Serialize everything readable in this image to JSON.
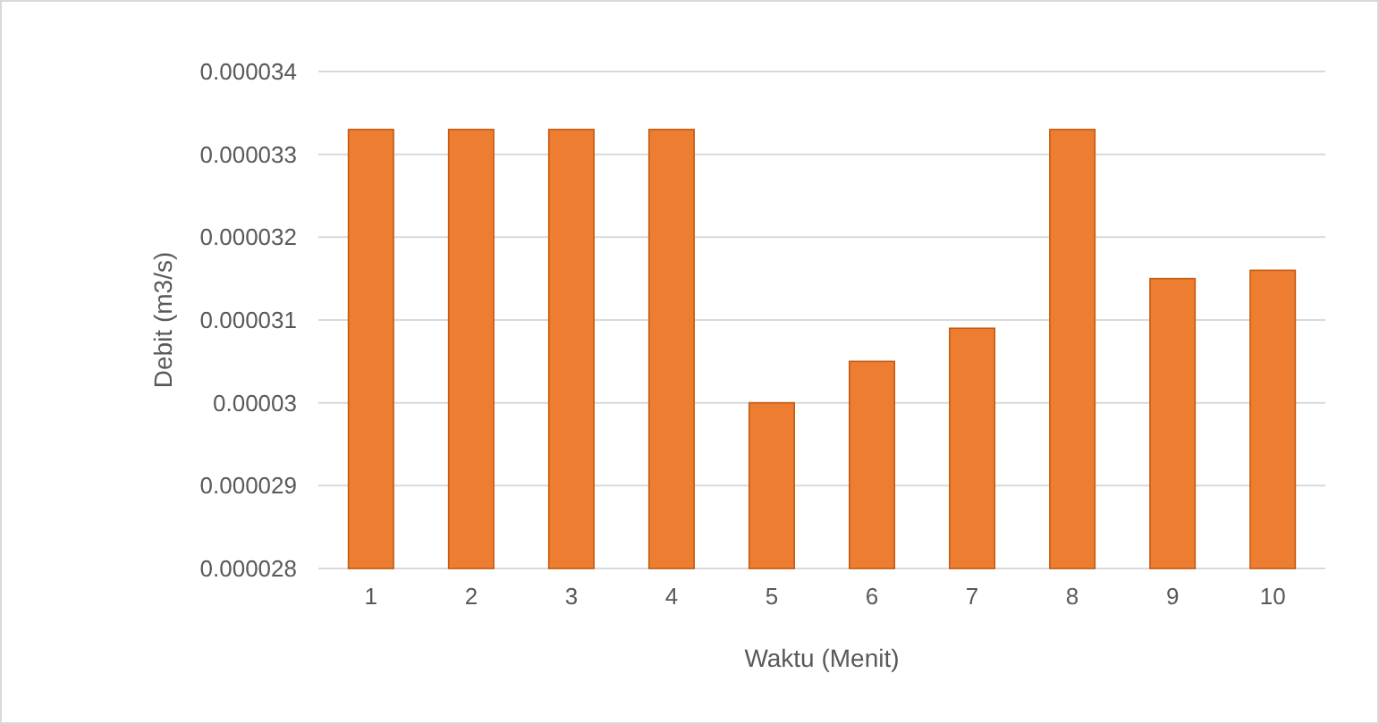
{
  "chart_data": {
    "type": "bar",
    "xlabel": "Waktu (Menit)",
    "ylabel": "Debit (m3/s)",
    "categories": [
      "1",
      "2",
      "3",
      "4",
      "5",
      "6",
      "7",
      "8",
      "9",
      "10"
    ],
    "values": [
      3.33e-05,
      3.33e-05,
      3.33e-05,
      3.33e-05,
      3e-05,
      3.05e-05,
      3.09e-05,
      3.33e-05,
      3.15e-05,
      3.16e-05
    ],
    "color": "#ed7d31",
    "ylim": [
      2.8e-05,
      3.4e-05
    ],
    "yticks": [
      {
        "value": 2.8e-05,
        "label": "0.000028"
      },
      {
        "value": 2.9e-05,
        "label": "0.000029"
      },
      {
        "value": 3e-05,
        "label": "0.00003"
      },
      {
        "value": 3.1e-05,
        "label": "0.000031"
      },
      {
        "value": 3.2e-05,
        "label": "0.000032"
      },
      {
        "value": 3.3e-05,
        "label": "0.000033"
      },
      {
        "value": 3.4e-05,
        "label": "0.000034"
      }
    ],
    "grid": true
  }
}
